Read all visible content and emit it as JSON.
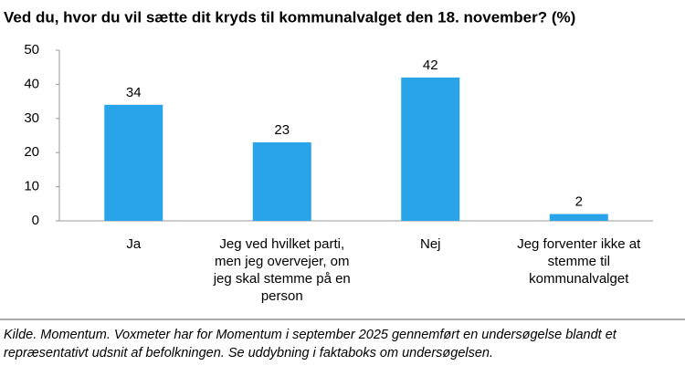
{
  "chart_data": {
    "type": "bar",
    "title": "Ved du, hvor du vil sætte dit kryds til kommunalvalget den 18. november? (%)",
    "categories": [
      "Ja",
      "Jeg ved hvilket parti, men jeg overvejer, om jeg skal stemme på en person",
      "Nej",
      "Jeg forventer ikke at stemme til kommunalvalget"
    ],
    "values": [
      34,
      23,
      42,
      2
    ],
    "color": "#29a4e8",
    "ylim": [
      0,
      50
    ],
    "yticks": [
      0,
      10,
      20,
      30,
      40,
      50
    ],
    "grid": false,
    "note": "Kilde. Momentum. Voxmeter har for Momentum i september 2025 gennemført en undersøgelse blandt et repræsentativt udsnit af befolkningen. Se uddybning i faktaboks om undersøgelsen."
  }
}
